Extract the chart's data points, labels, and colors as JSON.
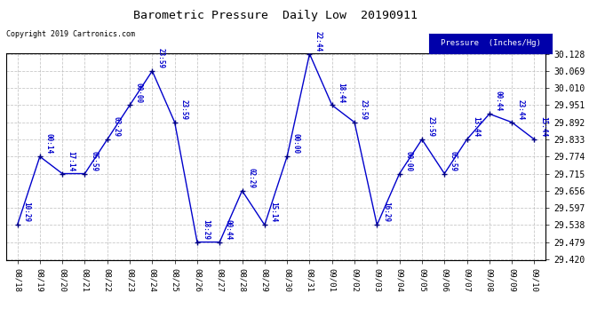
{
  "title": "Barometric Pressure  Daily Low  20190911",
  "copyright": "Copyright 2019 Cartronics.com",
  "legend_label": "Pressure  (Inches/Hg)",
  "x_labels": [
    "08/18",
    "08/19",
    "08/20",
    "08/21",
    "08/22",
    "08/23",
    "08/24",
    "08/25",
    "08/26",
    "08/27",
    "08/28",
    "08/29",
    "08/30",
    "08/31",
    "09/01",
    "09/02",
    "09/03",
    "09/04",
    "09/05",
    "09/06",
    "09/07",
    "09/08",
    "09/09",
    "09/10"
  ],
  "y_values": [
    29.538,
    29.774,
    29.715,
    29.715,
    29.833,
    29.951,
    30.069,
    29.892,
    29.479,
    29.479,
    29.656,
    29.538,
    29.774,
    30.128,
    29.951,
    29.892,
    29.538,
    29.715,
    29.833,
    29.715,
    29.833,
    29.921,
    29.892,
    29.833
  ],
  "time_labels": [
    "10:29",
    "00:14",
    "17:14",
    "05:59",
    "03:29",
    "00:00",
    "23:59",
    "23:59",
    "18:29",
    "00:44",
    "02:29",
    "15:14",
    "00:00",
    "22:44",
    "18:44",
    "23:59",
    "16:29",
    "00:00",
    "23:59",
    "05:59",
    "13:44",
    "00:44",
    "23:44",
    "15:44"
  ],
  "line_color": "#0000CC",
  "marker_color": "#000080",
  "label_color": "#0000CC",
  "background_color": "#ffffff",
  "grid_color": "#bbbbbb",
  "legend_bg": "#0000AA",
  "legend_fg": "#ffffff",
  "ylim_min": 29.42,
  "ylim_max": 30.128,
  "yticks": [
    29.42,
    29.479,
    29.538,
    29.597,
    29.656,
    29.715,
    29.774,
    29.833,
    29.892,
    29.951,
    30.01,
    30.069,
    30.128
  ]
}
